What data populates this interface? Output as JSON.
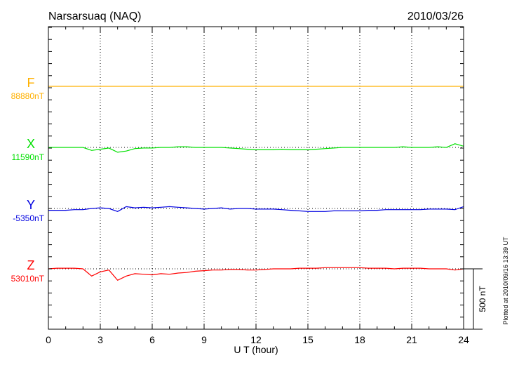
{
  "chart_data": {
    "type": "line",
    "title": "Narsarsuaq (NAQ)",
    "date": "2010/03/26",
    "xlabel": "U T (hour)",
    "xlim": [
      0,
      24
    ],
    "xticks": [
      0,
      3,
      6,
      9,
      12,
      15,
      18,
      21,
      24
    ],
    "grid": "vertical dotted at each x tick; dotted baseline per series",
    "scale_bar_label": "500 nT",
    "scale_bar_nT": 500,
    "footnote": "Plotted at 2010/09/16 13:39 UT",
    "x_step_hours": 0.5,
    "series": [
      {
        "name": "F",
        "baseline_label": "88880nT",
        "color": "#ffb000",
        "values": [
          0,
          0,
          0,
          0,
          0,
          0,
          0,
          0,
          0,
          0,
          0,
          0,
          0,
          0,
          0,
          0,
          0,
          0,
          0,
          0,
          0,
          0,
          0,
          0,
          0,
          0,
          0,
          0,
          0,
          0,
          0,
          0,
          0,
          0,
          0,
          0,
          0,
          0,
          0,
          0,
          0,
          0,
          0,
          0,
          0,
          0,
          0,
          0,
          0
        ]
      },
      {
        "name": "X",
        "baseline_label": "11590nT",
        "color": "#00e000",
        "values": [
          0,
          0,
          0,
          0,
          0,
          -25,
          -15,
          -5,
          -40,
          -30,
          -10,
          -5,
          -5,
          0,
          0,
          5,
          5,
          0,
          0,
          0,
          0,
          -5,
          -10,
          -15,
          -20,
          -20,
          -20,
          -15,
          -20,
          -20,
          -20,
          -15,
          -10,
          -5,
          0,
          0,
          0,
          0,
          0,
          0,
          0,
          5,
          0,
          0,
          0,
          5,
          0,
          30,
          10
        ]
      },
      {
        "name": "Y",
        "baseline_label": "-5350nT",
        "color": "#0000e0",
        "values": [
          -15,
          -15,
          -15,
          -10,
          -10,
          0,
          5,
          0,
          -25,
          15,
          5,
          10,
          5,
          10,
          15,
          10,
          5,
          0,
          -5,
          0,
          5,
          -5,
          0,
          0,
          -5,
          -5,
          -5,
          -10,
          -15,
          -20,
          -25,
          -25,
          -25,
          -20,
          -20,
          -20,
          -20,
          -15,
          -15,
          -10,
          -10,
          -10,
          -10,
          -10,
          -5,
          -5,
          -5,
          -10,
          15
        ]
      },
      {
        "name": "Z",
        "baseline_label": "53010nT",
        "color": "#ff0000",
        "values": [
          0,
          5,
          5,
          5,
          0,
          -60,
          -25,
          -10,
          -95,
          -60,
          -40,
          -45,
          -50,
          -40,
          -45,
          -35,
          -30,
          -20,
          -15,
          -10,
          -10,
          -5,
          -5,
          -10,
          -10,
          -5,
          0,
          0,
          0,
          5,
          5,
          5,
          10,
          10,
          10,
          10,
          10,
          5,
          5,
          5,
          0,
          5,
          5,
          5,
          0,
          0,
          0,
          -10,
          0
        ]
      }
    ]
  }
}
